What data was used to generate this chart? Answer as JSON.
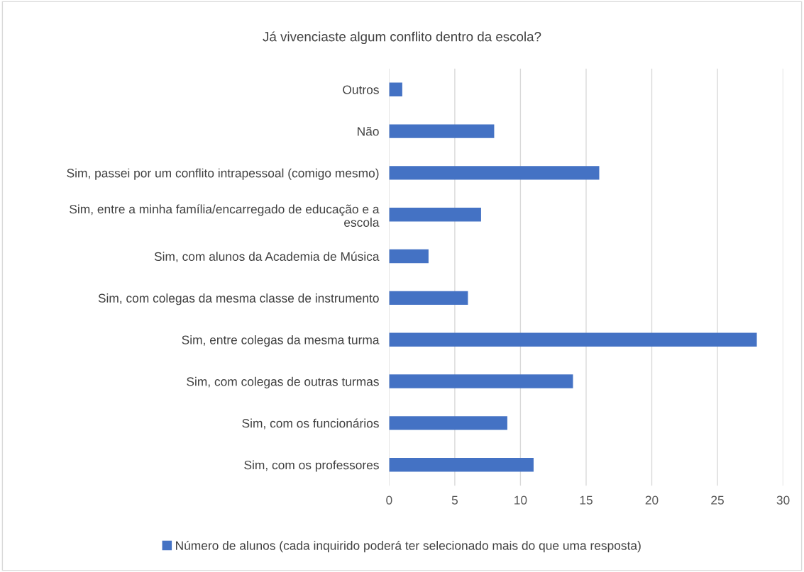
{
  "chart_data": {
    "type": "bar",
    "orientation": "horizontal",
    "title": "Já vivenciaste algum conflito dentro da escola?",
    "categories": [
      "Outros",
      "Não",
      "Sim, passei por um conflito intrapessoal (comigo mesmo)",
      "Sim, entre a minha família/encarregado de educação e a\nescola",
      "Sim, com alunos da Academia de Música",
      "Sim, com colegas da mesma classe de instrumento",
      "Sim, entre colegas da mesma turma",
      "Sim, com colegas de outras turmas",
      "Sim, com os funcionários",
      "Sim, com os professores"
    ],
    "series": [
      {
        "name": "Número de alunos (cada inquirido poderá ter selecionado mais do que uma resposta)",
        "color": "#4472c4",
        "values": [
          1,
          8,
          16,
          7,
          3,
          6,
          28,
          14,
          9,
          11
        ]
      }
    ],
    "xlim": [
      0,
      30
    ],
    "xticks": [
      0,
      5,
      10,
      15,
      20,
      25,
      30
    ],
    "grid": "x",
    "legend": "bottom"
  }
}
